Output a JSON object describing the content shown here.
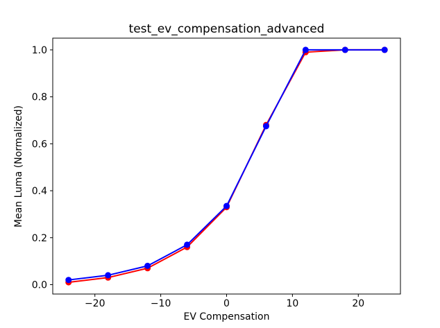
{
  "chart_data": {
    "type": "line",
    "title": "test_ev_compensation_advanced",
    "xlabel": "EV Compensation",
    "ylabel": "Mean Luma (Normalized)",
    "x": [
      -24,
      -18,
      -12,
      -6,
      0,
      6,
      12,
      18,
      24
    ],
    "series": [
      {
        "name": "red",
        "color": "#ff0000",
        "marker": "circle",
        "values": [
          0.01,
          0.03,
          0.07,
          0.16,
          0.33,
          0.68,
          0.99,
          1.0,
          1.0
        ]
      },
      {
        "name": "blue",
        "color": "#0000ff",
        "marker": "circle",
        "values": [
          0.02,
          0.04,
          0.08,
          0.17,
          0.335,
          0.675,
          1.0,
          1.0,
          1.0
        ]
      }
    ],
    "xlim": [
      -26.4,
      26.4
    ],
    "ylim": [
      -0.04,
      1.05
    ],
    "x_ticks": [
      -20,
      -10,
      0,
      10,
      20
    ],
    "y_ticks": [
      0.0,
      0.2,
      0.4,
      0.6,
      0.8,
      1.0
    ],
    "grid": false,
    "legend": "none",
    "background": "#ffffff",
    "axis_color": "#000000"
  }
}
